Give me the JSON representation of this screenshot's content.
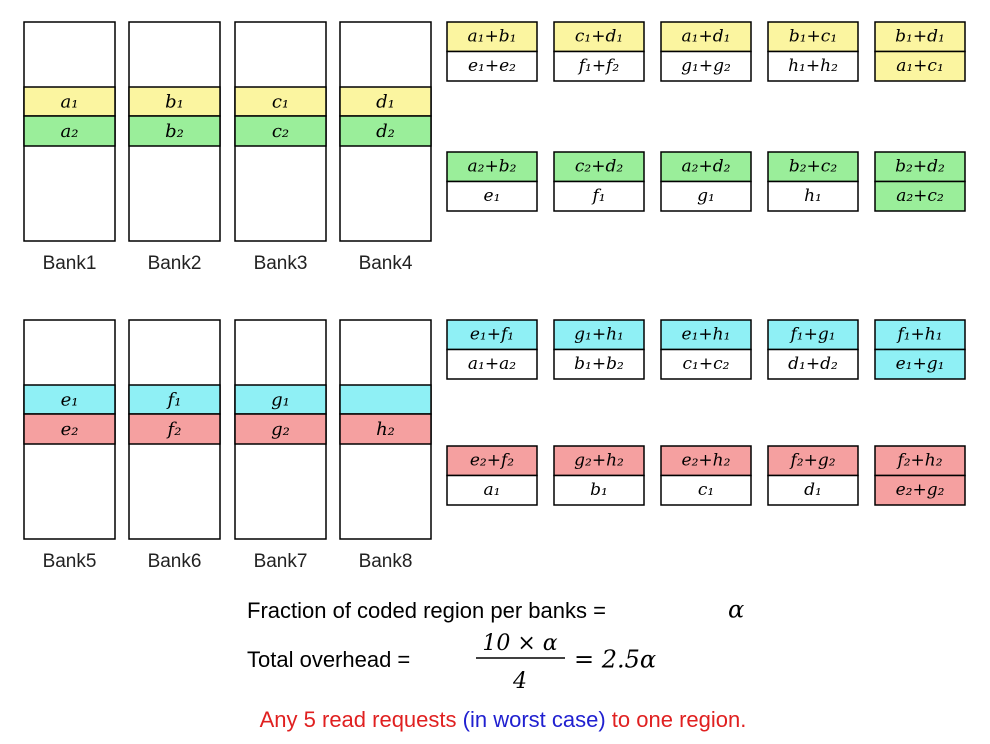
{
  "banks": [
    {
      "label": "Bank1",
      "top": "a₁",
      "bottom": "a₂"
    },
    {
      "label": "Bank2",
      "top": "b₁",
      "bottom": "b₂"
    },
    {
      "label": "Bank3",
      "top": "c₁",
      "bottom": "c₂"
    },
    {
      "label": "Bank4",
      "top": "d₁",
      "bottom": "d₂"
    },
    {
      "label": "Bank5",
      "top": "e₁",
      "bottom": "e₂"
    },
    {
      "label": "Bank6",
      "top": "f₁",
      "bottom": "f₂"
    },
    {
      "label": "Bank7",
      "top": "g₁",
      "bottom": "g₂"
    },
    {
      "label": "Bank8",
      "bottom": "h₂"
    }
  ],
  "coded_groups": [
    {
      "cells": [
        [
          "a₁+b₁",
          "e₁+e₂"
        ],
        [
          "c₁+d₁",
          "f₁+f₂"
        ],
        [
          "a₁+d₁",
          "g₁+g₂"
        ],
        [
          "b₁+c₁",
          "h₁+h₂"
        ],
        [
          "b₁+d₁",
          "a₁+c₁"
        ]
      ]
    },
    {
      "cells": [
        [
          "a₂+b₂",
          "e₁"
        ],
        [
          "c₂+d₂",
          "f₁"
        ],
        [
          "a₂+d₂",
          "g₁"
        ],
        [
          "b₂+c₂",
          "h₁"
        ],
        [
          "b₂+d₂",
          "a₂+c₂"
        ]
      ]
    },
    {
      "cells": [
        [
          "e₁+f₁",
          "a₁+a₂"
        ],
        [
          "g₁+h₁",
          "b₁+b₂"
        ],
        [
          "e₁+h₁",
          "c₁+c₂"
        ],
        [
          "f₁+g₁",
          "d₁+d₂"
        ],
        [
          "f₁+h₁",
          "e₁+g₁"
        ]
      ]
    },
    {
      "cells": [
        [
          "e₂+f₂",
          "a₁"
        ],
        [
          "g₂+h₂",
          "b₁"
        ],
        [
          "e₂+h₂",
          "c₁"
        ],
        [
          "f₂+g₂",
          "d₁"
        ],
        [
          "f₂+h₂",
          "e₂+g₂"
        ]
      ]
    }
  ],
  "formula": {
    "fraction_label": "Fraction of coded region per banks =",
    "fraction_symbol": "α",
    "overhead_label": "Total overhead =",
    "numerator": "10 × α",
    "denominator": "4",
    "result": "= 2.5α"
  },
  "note": {
    "before": "Any 5 read requests ",
    "highlight": "(in worst case)",
    "after": " to one region."
  }
}
